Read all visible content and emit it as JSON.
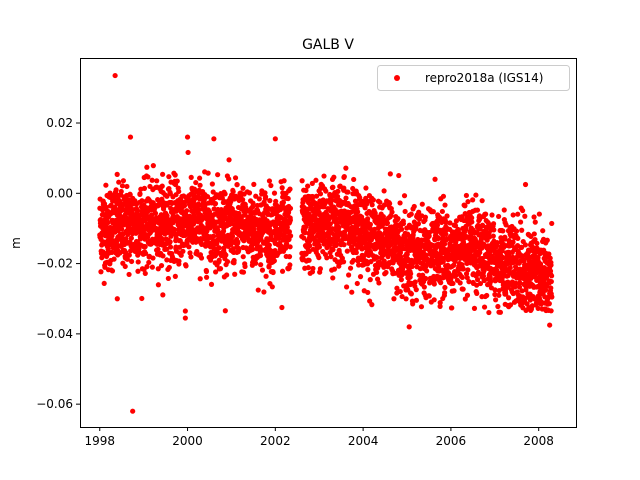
{
  "chart_data": {
    "type": "scatter",
    "title": "GALB V",
    "xlabel": "",
    "ylabel": "m",
    "xlim": [
      1997.55,
      2008.85
    ],
    "ylim": [
      -0.0665,
      0.0385
    ],
    "x_ticks": [
      1998,
      2000,
      2002,
      2004,
      2006,
      2008
    ],
    "x_tick_labels": [
      "1998",
      "2000",
      "2002",
      "2004",
      "2006",
      "2008"
    ],
    "y_ticks": [
      0.02,
      0.0,
      -0.02,
      -0.04,
      -0.06
    ],
    "y_tick_labels": [
      "0.02",
      "0.00",
      "−0.02",
      "−0.04",
      "−0.06"
    ],
    "legend": {
      "location": "top-right"
    },
    "series": [
      {
        "name": "repro2018a (IGS14)",
        "color": "#ff0000",
        "marker": "circle",
        "x_range": [
          1998.0,
          2008.3
        ],
        "gap": [
          2002.35,
          2002.6
        ],
        "trend_mean": [
          [
            1998.0,
            -0.01
          ],
          [
            2000.0,
            -0.008
          ],
          [
            2002.0,
            -0.011
          ],
          [
            2003.5,
            -0.008
          ],
          [
            2005.0,
            -0.016
          ],
          [
            2006.5,
            -0.017
          ],
          [
            2008.3,
            -0.024
          ]
        ],
        "scatter_std": 0.006,
        "outliers": [
          {
            "x": 1998.35,
            "y": 0.0335
          },
          {
            "x": 1998.75,
            "y": -0.062
          },
          {
            "x": 1999.95,
            "y": -0.0335
          },
          {
            "x": 1999.95,
            "y": -0.0355
          },
          {
            "x": 1998.4,
            "y": -0.03
          },
          {
            "x": 2002.15,
            "y": -0.0325
          },
          {
            "x": 1998.7,
            "y": 0.016
          },
          {
            "x": 2000.0,
            "y": 0.016
          },
          {
            "x": 2000.6,
            "y": 0.0155
          },
          {
            "x": 2002.0,
            "y": 0.0155
          },
          {
            "x": 2005.05,
            "y": -0.038
          },
          {
            "x": 2008.25,
            "y": -0.0375
          },
          {
            "x": 2007.7,
            "y": 0.0025
          }
        ]
      }
    ]
  }
}
